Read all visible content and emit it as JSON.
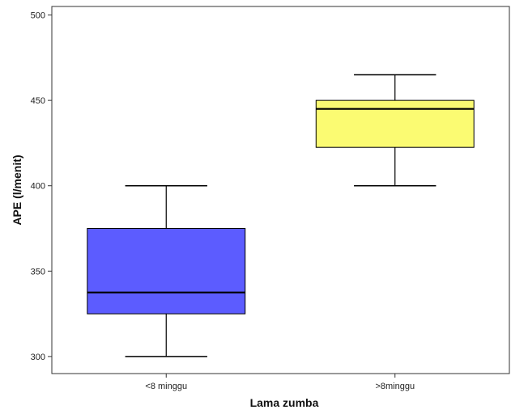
{
  "chart_data": {
    "type": "boxplot",
    "title": "",
    "xlabel": "Lama zumba",
    "ylabel": "APE (l/menit)",
    "ylim": [
      290,
      505
    ],
    "yticks": [
      300,
      350,
      400,
      450,
      500
    ],
    "grid": false,
    "categories": [
      "<8 minggu",
      ">8minggu"
    ],
    "boxes": [
      {
        "category": "<8 minggu",
        "min": 300,
        "q1": 325,
        "median": 337.5,
        "q3": 375,
        "max": 400,
        "color": "#5c5cff"
      },
      {
        "category": ">8minggu",
        "min": 400,
        "q1": 422.5,
        "median": 445,
        "q3": 450,
        "max": 465,
        "color": "#fbfb72"
      }
    ]
  },
  "colors": {
    "frame": "#333333",
    "box_outline": "#000000",
    "median": "#000000"
  }
}
